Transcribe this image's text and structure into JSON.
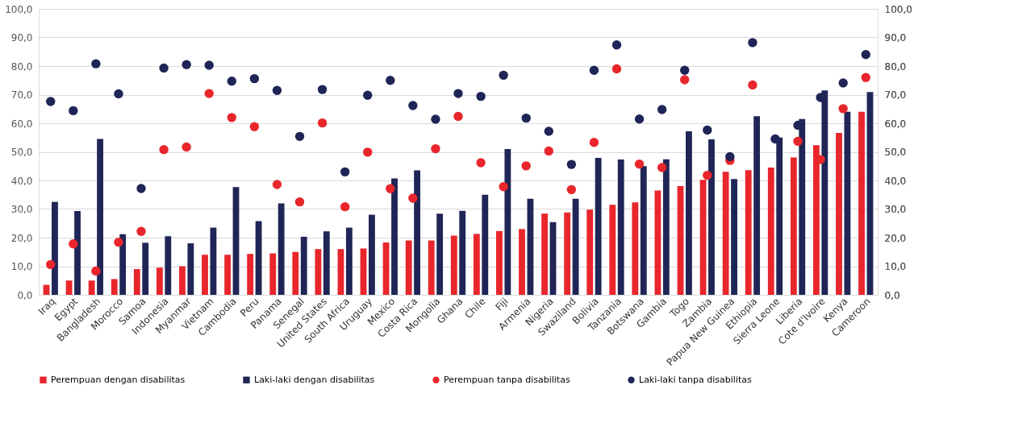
{
  "chart_data": {
    "type": "bar",
    "categories": [
      "Iraq",
      "Egypt",
      "Bangladesh",
      "Morocco",
      "Samoa",
      "Indonesia",
      "Myanmar",
      "Vietnam",
      "Cambodia",
      "Peru",
      "Panama",
      "Senegal",
      "United States",
      "South Africa",
      "Uruguay",
      "Mexico",
      "Costa Rica",
      "Mongolia",
      "Ghana",
      "Chile",
      "Fiji",
      "Armenia",
      "Nigeria",
      "Swaziland",
      "Bolivia",
      "Tanzania",
      "Botswana",
      "Gambia",
      "Togo",
      "Zambia",
      "Papua New Guinea",
      "Ethiopia",
      "Sierra Leone",
      "Liberia",
      "Cote d'Ivoire",
      "Kenya",
      "Cameroon"
    ],
    "series": [
      {
        "name": "Perempuan dengan disabilitas",
        "color": "#e8262b",
        "values": [
          3.5,
          5,
          5,
          5.5,
          9,
          9.5,
          10,
          14,
          14,
          14.3,
          14.5,
          15,
          16,
          16,
          16.2,
          18.3,
          19,
          19,
          20.7,
          21.3,
          22.3,
          23,
          28.4,
          28.8,
          29.8,
          31.5,
          32.3,
          36.5,
          38,
          40.2,
          43,
          43.6,
          44.5,
          48,
          52.3,
          56.6,
          64
        ]
      },
      {
        "name": "Laki-laki dengan disabilitas",
        "color": "#1f2556",
        "values": [
          32.5,
          29.3,
          54.5,
          21.2,
          18.2,
          20.5,
          18,
          23.5,
          37.7,
          25.8,
          32,
          20.3,
          22.2,
          23.5,
          28,
          40.7,
          43.5,
          28.4,
          29.4,
          35,
          51,
          33.6,
          25.4,
          33.6,
          47.9,
          47.3,
          45,
          47.4,
          57.2,
          54.4,
          40.5,
          62.5,
          55,
          61.5,
          71.5,
          64,
          70.9
        ]
      },
      {
        "name": "Perempuan tanpa disabilitas",
        "type": "scatter",
        "marker": "circle",
        "color": "#e8262b",
        "values": [
          10.6,
          17.8,
          8.3,
          18.4,
          22.2,
          50.8,
          51.7,
          70.4,
          62,
          58.8,
          38.6,
          32.5,
          60.1,
          30.8,
          49.9,
          37.1,
          33.8,
          51.1,
          62.4,
          46.2,
          37.8,
          45.1,
          50.3,
          36.8,
          53.3,
          79,
          45.7,
          44.5,
          75.2,
          41.8,
          47.0,
          73.4,
          null,
          53.7,
          47.3,
          65.1,
          76
        ]
      },
      {
        "name": "Laki-laki tanpa disabilitas",
        "type": "scatter",
        "marker": "circle",
        "color": "#1f2556",
        "values": [
          67.6,
          64.4,
          80.8,
          70.3,
          37.2,
          79.3,
          80.5,
          80.3,
          74.7,
          75.6,
          71.5,
          55.4,
          71.8,
          43,
          69.8,
          75,
          66.2,
          61.4,
          70.4,
          69.4,
          76.8,
          61.8,
          57.2,
          45.6,
          78.5,
          87.4,
          61.5,
          64.8,
          78.5,
          57.6,
          48.3,
          88.2,
          54.5,
          59.3,
          69,
          74.1,
          84
        ]
      }
    ],
    "ylim": [
      0,
      100
    ],
    "yticks": [
      {
        "value": 0,
        "label": "0,0"
      },
      {
        "value": 10,
        "label": "10,0"
      },
      {
        "value": 20,
        "label": "20,0"
      },
      {
        "value": 30,
        "label": "30,0"
      },
      {
        "value": 40,
        "label": "40,0"
      },
      {
        "value": 50,
        "label": "50,0"
      },
      {
        "value": 60,
        "label": "60,0"
      },
      {
        "value": 70,
        "label": "70,0"
      },
      {
        "value": 80,
        "label": "80,0"
      },
      {
        "value": 90,
        "label": "90,0"
      },
      {
        "value": 100,
        "label": "100,0"
      }
    ],
    "y2lim": [
      0,
      100
    ],
    "y2ticks": [
      {
        "value": 0,
        "label": "0,0"
      },
      {
        "value": 10,
        "label": "10,0"
      },
      {
        "value": 20,
        "label": "20,0"
      },
      {
        "value": 30,
        "label": "30,0"
      },
      {
        "value": 40,
        "label": "40,0"
      },
      {
        "value": 50,
        "label": "50,0"
      },
      {
        "value": 60,
        "label": "60,0"
      },
      {
        "value": 70,
        "label": "70,0"
      },
      {
        "value": 80,
        "label": "80,0"
      },
      {
        "value": 90,
        "label": "90,0"
      },
      {
        "value": 100,
        "label": "100,0"
      }
    ],
    "grid": "y",
    "legend": "bottom"
  }
}
